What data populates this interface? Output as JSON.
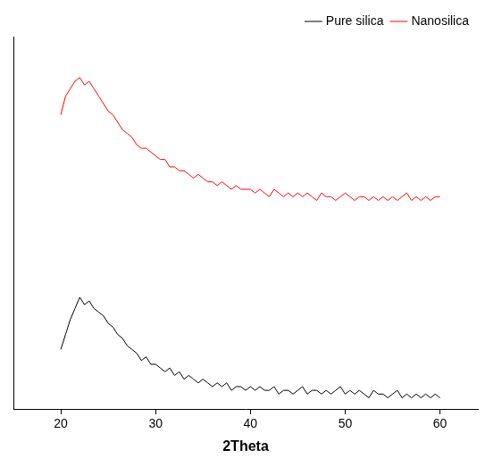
{
  "chart_data": {
    "type": "line",
    "x_label": "2Theta",
    "x": [
      20,
      20.5,
      21,
      21.5,
      22,
      22.5,
      23,
      23.5,
      24,
      24.5,
      25,
      25.5,
      26,
      26.5,
      27,
      27.5,
      28,
      28.5,
      29,
      29.5,
      30,
      30.5,
      31,
      31.5,
      32,
      32.5,
      33,
      33.5,
      34,
      34.5,
      35,
      35.5,
      36,
      36.5,
      37,
      37.5,
      38,
      38.5,
      39,
      39.5,
      40,
      40.5,
      41,
      41.5,
      42,
      42.5,
      43,
      43.5,
      44,
      44.5,
      45,
      45.5,
      46,
      46.5,
      47,
      47.5,
      48,
      48.5,
      49,
      49.5,
      50,
      50.5,
      51,
      51.5,
      52,
      52.5,
      53,
      53.5,
      54,
      54.5,
      55,
      55.5,
      56,
      56.5,
      57,
      57.5,
      58,
      58.5,
      59,
      59.5,
      60
    ],
    "series": [
      {
        "name": "Pure silica",
        "color": "#000000",
        "values": [
          16,
          20,
          24,
          27,
          30,
          28,
          29,
          27,
          26,
          25,
          23,
          22,
          20,
          19,
          17,
          16,
          15,
          13,
          14,
          12,
          12,
          11,
          10,
          11,
          9,
          10,
          8,
          9,
          8,
          7,
          8,
          7,
          6,
          7,
          6,
          7,
          5,
          6,
          6,
          5,
          6,
          5,
          6,
          5,
          5,
          6,
          4,
          5,
          5,
          4,
          5,
          6,
          4,
          5,
          5,
          4,
          5,
          4,
          5,
          6,
          4,
          5,
          4,
          5,
          4,
          3,
          5,
          4,
          4,
          3,
          4,
          5,
          3,
          4,
          3,
          4,
          3,
          4,
          3,
          4,
          3
        ]
      },
      {
        "name": "Nanosilica",
        "color": "#ff0000",
        "values": [
          79,
          84,
          86,
          88,
          89,
          87,
          88,
          86,
          84,
          82,
          80,
          79,
          77,
          75,
          74,
          73,
          71,
          70,
          70,
          69,
          68,
          67,
          67,
          65,
          65,
          64,
          64,
          63,
          62,
          63,
          62,
          61,
          61,
          60,
          61,
          60,
          59,
          60,
          59,
          59,
          59,
          58,
          59,
          58,
          57,
          59,
          58,
          57,
          58,
          57,
          58,
          57,
          58,
          57,
          56,
          58,
          57,
          57,
          56,
          57,
          58,
          57,
          56,
          57,
          57,
          56,
          57,
          56,
          57,
          56,
          57,
          56,
          57,
          58,
          56,
          57,
          56,
          57,
          56,
          57,
          57
        ]
      }
    ],
    "xlim": [
      15,
      64
    ],
    "xticks": [
      20,
      30,
      40,
      50,
      60
    ],
    "ylim": [
      0,
      100
    ],
    "tick_labels": "x",
    "grid": false,
    "legend": "top right"
  }
}
